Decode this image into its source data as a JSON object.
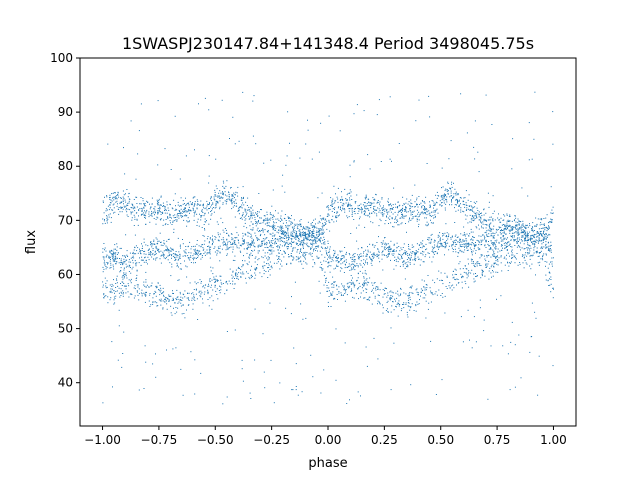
{
  "chart_data": {
    "type": "scatter",
    "title": "1SWASPJ230147.84+141348.4 Period 3498045.75s",
    "xlabel": "phase",
    "ylabel": "flux",
    "xlim": [
      -1.1,
      1.1
    ],
    "ylim": [
      32,
      100
    ],
    "xticks": [
      -1.0,
      -0.75,
      -0.5,
      -0.25,
      0.0,
      0.25,
      0.5,
      0.75,
      1.0
    ],
    "xtick_labels": [
      "−1.00",
      "−0.75",
      "−0.50",
      "−0.25",
      "0.00",
      "0.25",
      "0.50",
      "0.75",
      "1.00"
    ],
    "yticks": [
      40,
      50,
      60,
      70,
      80,
      90,
      100
    ],
    "ytick_labels": [
      "40",
      "50",
      "60",
      "70",
      "80",
      "90",
      "100"
    ],
    "grid": false,
    "legend": false,
    "marker_color": "#1f77b4",
    "series": [
      {
        "description_of_structure": "phase-folded light curve repeated over two cycles; dense bands near flux 72, 65 and 57 with scattered outliers between 35 and 95",
        "x": [
          -1.0,
          -0.95,
          -0.9,
          -0.85,
          -0.8,
          -0.75,
          -0.7,
          -0.65,
          -0.6,
          -0.55,
          -0.5,
          -0.45,
          -0.4,
          -0.35,
          -0.3,
          -0.25,
          -0.2,
          -0.15,
          -0.1,
          -0.05,
          0.0,
          0.05,
          0.1,
          0.15,
          0.2,
          0.25,
          0.3,
          0.35,
          0.4,
          0.45,
          0.5,
          0.55,
          0.6,
          0.65,
          0.7,
          0.75,
          0.8,
          0.85,
          0.9,
          0.95,
          1.0
        ],
        "upper_band": [
          71,
          73,
          73,
          72,
          72,
          72,
          71,
          72,
          72,
          71,
          74,
          75,
          73,
          71,
          70,
          69,
          69,
          68,
          67,
          67,
          71,
          73,
          73,
          72,
          72,
          72,
          71,
          72,
          72,
          71,
          74,
          75,
          73,
          71,
          70,
          69,
          69,
          68,
          67,
          67,
          71
        ],
        "middle_band": [
          63,
          63,
          62,
          63,
          64,
          65,
          64,
          63,
          64,
          65,
          66,
          66,
          66,
          66,
          66,
          66,
          67,
          67,
          67,
          68,
          63,
          63,
          62,
          63,
          64,
          65,
          64,
          63,
          64,
          65,
          66,
          66,
          66,
          66,
          66,
          66,
          67,
          67,
          67,
          68,
          63
        ],
        "lower_band": [
          57,
          57,
          58,
          58,
          57,
          56,
          55,
          55,
          56,
          57,
          58,
          59,
          60,
          61,
          62,
          63,
          64,
          64,
          64,
          64,
          57,
          57,
          58,
          58,
          57,
          56,
          55,
          55,
          56,
          57,
          58,
          59,
          60,
          61,
          62,
          63,
          64,
          64,
          64,
          64,
          57
        ]
      }
    ]
  }
}
